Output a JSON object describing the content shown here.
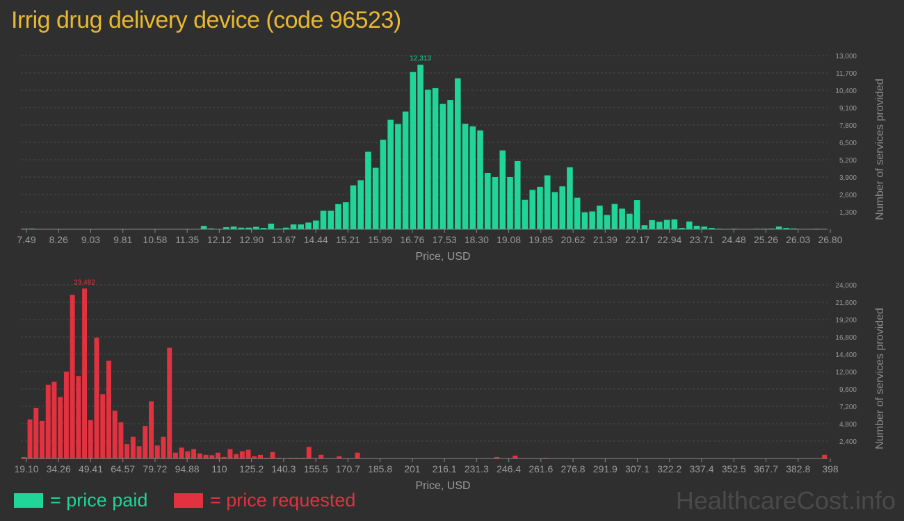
{
  "title": "Irrig drug delivery device (code 96523)",
  "watermark": "HealthcareCost.info",
  "legend": {
    "paid": {
      "label": "= price paid",
      "color": "#20d597"
    },
    "requested": {
      "label": "= price requested",
      "color": "#e23240"
    }
  },
  "chart_data": [
    {
      "type": "bar",
      "name": "price paid",
      "color": "#20d597",
      "xlabel": "Price, USD",
      "ylabel": "Number of services provided",
      "ylim": [
        0,
        13000
      ],
      "grid": true,
      "x_ticks": [
        "7.49",
        "8.26",
        "9.03",
        "9.81",
        "10.58",
        "11.35",
        "12.12",
        "12.90",
        "13.67",
        "14.44",
        "15.21",
        "15.99",
        "16.76",
        "17.53",
        "18.30",
        "19.08",
        "19.85",
        "20.62",
        "21.39",
        "22.17",
        "22.94",
        "23.71",
        "24.48",
        "25.26",
        "26.03",
        "26.80"
      ],
      "y_ticks": [
        "1,300",
        "2,600",
        "3,900",
        "5,200",
        "6,500",
        "7,800",
        "9,100",
        "10,400",
        "11,700",
        "13,000"
      ],
      "peak_label": "12,313",
      "values": [
        40,
        50,
        0,
        0,
        20,
        0,
        0,
        20,
        20,
        0,
        0,
        0,
        0,
        0,
        0,
        0,
        0,
        20,
        20,
        0,
        0,
        0,
        20,
        0,
        250,
        60,
        0,
        150,
        200,
        120,
        120,
        180,
        100,
        420,
        50,
        120,
        360,
        360,
        500,
        650,
        1380,
        1380,
        1880,
        2020,
        3280,
        3670,
        5800,
        4600,
        6700,
        8190,
        7880,
        8810,
        11770,
        12313,
        10450,
        10560,
        9380,
        9670,
        11300,
        7900,
        7700,
        7400,
        4210,
        3900,
        5900,
        3900,
        5100,
        2200,
        2950,
        3180,
        4030,
        2780,
        3210,
        4640,
        2360,
        1270,
        1330,
        1770,
        1070,
        1890,
        1540,
        1160,
        2180,
        300,
        680,
        560,
        700,
        740,
        100,
        580,
        260,
        200,
        100,
        40,
        20,
        40,
        0,
        0,
        40,
        40,
        50,
        200,
        100,
        60,
        20,
        20,
        40,
        20
      ]
    },
    {
      "type": "bar",
      "name": "price requested",
      "color": "#e23240",
      "xlabel": "Price, USD",
      "ylabel": "Number of services provided",
      "ylim": [
        0,
        24000
      ],
      "grid": true,
      "x_ticks": [
        "19.10",
        "34.26",
        "49.41",
        "64.57",
        "79.72",
        "94.88",
        "110",
        "125.2",
        "140.3",
        "155.5",
        "170.7",
        "185.8",
        "201",
        "216.1",
        "231.3",
        "246.4",
        "261.6",
        "276.8",
        "291.9",
        "307.1",
        "322.2",
        "337.4",
        "352.5",
        "367.7",
        "382.8",
        "398"
      ],
      "y_ticks": [
        "2,400",
        "4,800",
        "7,200",
        "9,600",
        "12,000",
        "14,400",
        "16,800",
        "19,200",
        "21,600",
        "24,000"
      ],
      "peak_label": "23,482",
      "values": [
        200,
        5400,
        7000,
        5200,
        10200,
        10600,
        8500,
        12000,
        22600,
        11400,
        23482,
        5300,
        16700,
        8900,
        13500,
        6600,
        5000,
        2000,
        3000,
        1700,
        4500,
        7900,
        1800,
        3000,
        15300,
        800,
        1500,
        1000,
        1300,
        700,
        500,
        450,
        800,
        200,
        1300,
        600,
        1000,
        1200,
        300,
        500,
        100,
        900,
        100,
        0,
        100,
        100,
        100,
        1600,
        50,
        500,
        50,
        50,
        300,
        0,
        0,
        800,
        50,
        50,
        0,
        0,
        0,
        0,
        0,
        0,
        0,
        0,
        50,
        0,
        0,
        0,
        0,
        0,
        0,
        0,
        0,
        0,
        0,
        0,
        200,
        0,
        0,
        400,
        0,
        0,
        0,
        0,
        100,
        0,
        0,
        0,
        0,
        0,
        50,
        50,
        0,
        0,
        50,
        0,
        0,
        0,
        0,
        0,
        50,
        0,
        0,
        0,
        0,
        0,
        0,
        0,
        0,
        0,
        0,
        0,
        0,
        0,
        0,
        0,
        0,
        0,
        0,
        0,
        0,
        0,
        0,
        0,
        0,
        0,
        0,
        0,
        0,
        0,
        500
      ]
    }
  ]
}
